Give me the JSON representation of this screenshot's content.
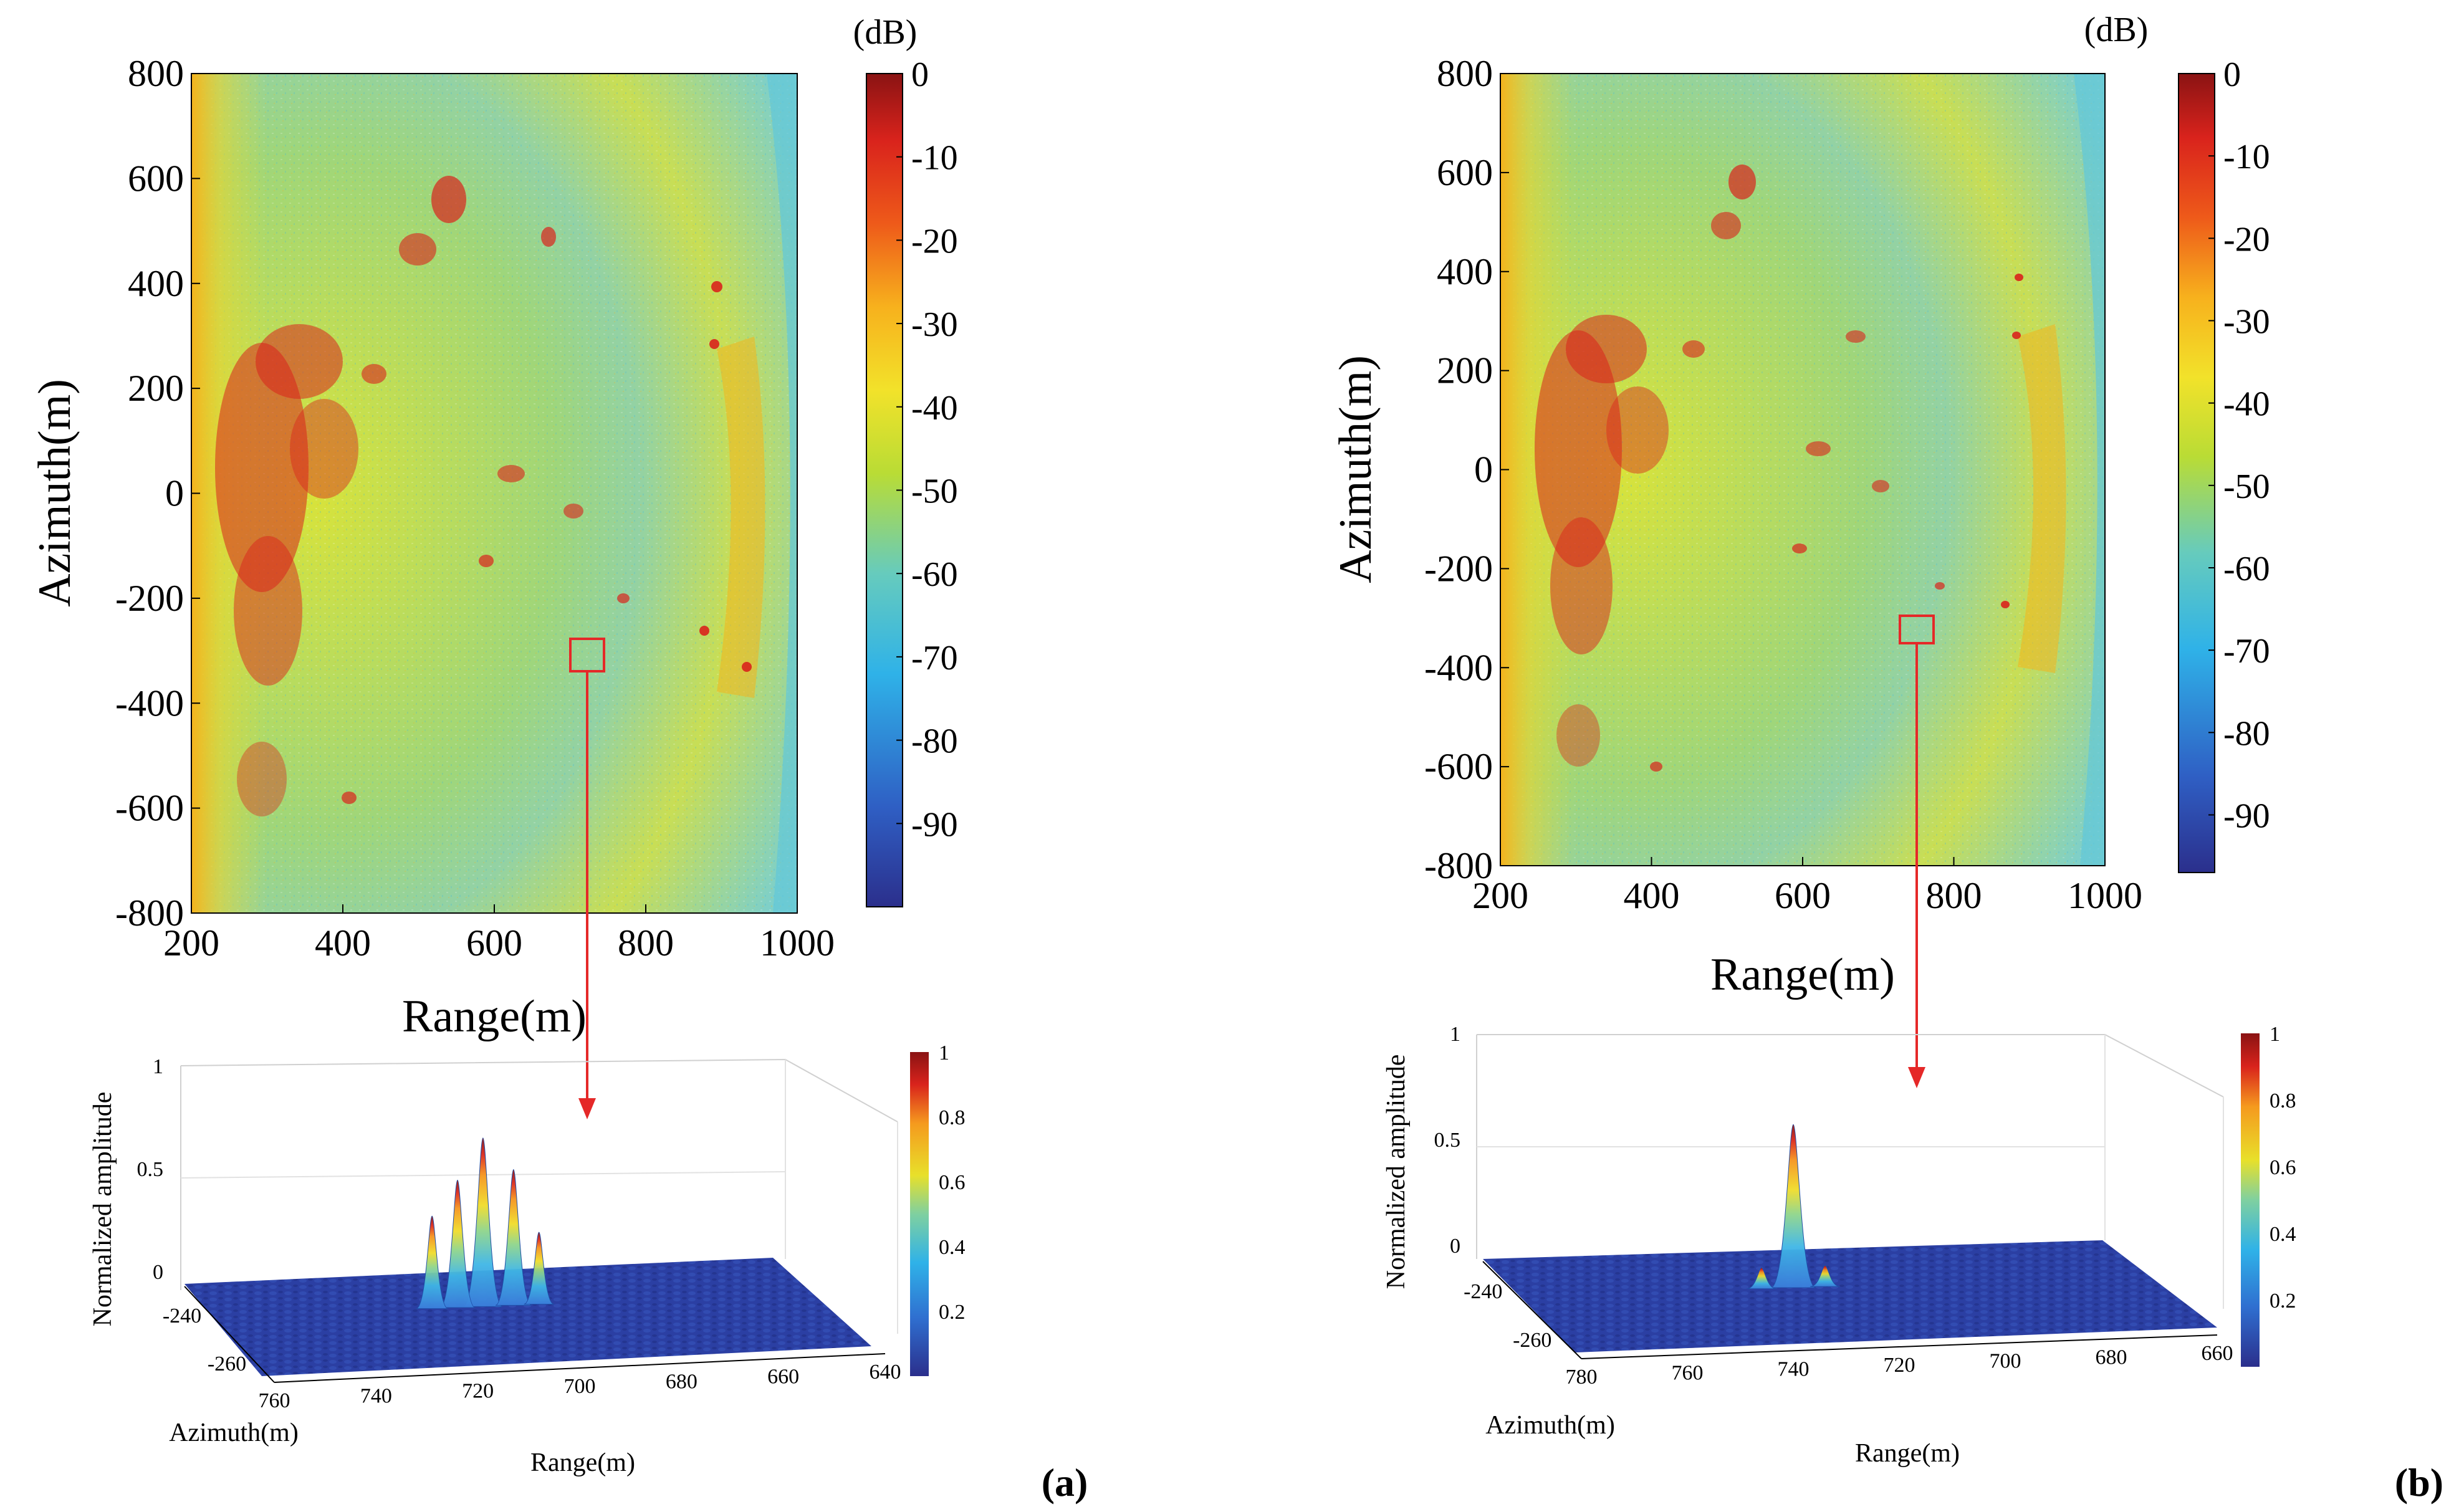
{
  "figure": {
    "panel_labels": [
      "(a)",
      "(b)"
    ]
  },
  "colors": {
    "colormap": [
      "#2b2f8c",
      "#2f5fc4",
      "#2fb2e8",
      "#66cbbd",
      "#b9dc35",
      "#f2e22a",
      "#f7b11d",
      "#ee5a1a",
      "#d9231c",
      "#8a1313"
    ],
    "annotation": "#e52828",
    "floor_blue": "#2b3fa3"
  },
  "chart_data": [
    {
      "panel": "a",
      "type": "heatmap",
      "title": "",
      "xlabel": "Range(m)",
      "ylabel": "Azimuth(m)",
      "xlim": [
        200,
        1000
      ],
      "ylim": [
        -800,
        800
      ],
      "xticks": [
        200,
        400,
        600,
        800,
        1000
      ],
      "yticks": [
        -800,
        -600,
        -400,
        -200,
        0,
        200,
        400,
        600,
        800
      ],
      "colorbar": {
        "label": "(dB)",
        "range": [
          -100,
          0
        ],
        "ticks": [
          0,
          -10,
          -20,
          -30,
          -40,
          -50,
          -60,
          -70,
          -80,
          -90
        ]
      },
      "annotation_box": {
        "range": [
          700,
          735
        ],
        "azimuth": [
          -340,
          -285
        ]
      }
    },
    {
      "panel": "a",
      "type": "surface",
      "zlabel": "Normalized amplitude",
      "xlabel": "Range(m)",
      "ylabel": "Azimuth(m)",
      "zticks": [
        0,
        0.5,
        1
      ],
      "xticks": [
        760,
        740,
        720,
        700,
        680,
        660,
        640
      ],
      "yticks": [
        -240,
        -260
      ],
      "peaks": [
        {
          "range": 719,
          "amplitude": 0.82
        },
        {
          "range": 724,
          "amplitude": 0.62
        },
        {
          "range": 713,
          "amplitude": 0.66
        },
        {
          "range": 729,
          "amplitude": 0.45
        },
        {
          "range": 708,
          "amplitude": 0.35
        }
      ],
      "colorbar": {
        "range": [
          0,
          1
        ],
        "ticks": [
          1,
          0.8,
          0.6,
          0.4,
          0.2
        ]
      }
    },
    {
      "panel": "b",
      "type": "heatmap",
      "title": "",
      "xlabel": "Range(m)",
      "ylabel": "Azimuth(m)",
      "xlim": [
        200,
        1000
      ],
      "ylim": [
        -800,
        800
      ],
      "xticks": [
        200,
        400,
        600,
        800,
        1000
      ],
      "yticks": [
        -800,
        -600,
        -400,
        -200,
        0,
        200,
        400,
        600,
        800
      ],
      "colorbar": {
        "label": "(dB)",
        "range": [
          -97,
          0
        ],
        "ticks": [
          0,
          -10,
          -20,
          -30,
          -40,
          -50,
          -60,
          -70,
          -80,
          -90
        ]
      },
      "annotation_box": {
        "range": [
          745,
          780
        ],
        "azimuth": [
          -340,
          -290
        ]
      }
    },
    {
      "panel": "b",
      "type": "surface",
      "zlabel": "Normalized amplitude",
      "xlabel": "Range(m)",
      "ylabel": "Azimuth(m)",
      "zticks": [
        0,
        0.5,
        1
      ],
      "xticks": [
        780,
        760,
        740,
        720,
        700,
        680,
        660
      ],
      "yticks": [
        -240,
        -260
      ],
      "peaks": [
        {
          "range": 740,
          "amplitude": 0.77
        },
        {
          "range": 746,
          "amplitude": 0.1
        },
        {
          "range": 734,
          "amplitude": 0.1
        }
      ],
      "colorbar": {
        "range": [
          0,
          1
        ],
        "ticks": [
          1,
          0.8,
          0.6,
          0.4,
          0.2
        ]
      }
    }
  ]
}
